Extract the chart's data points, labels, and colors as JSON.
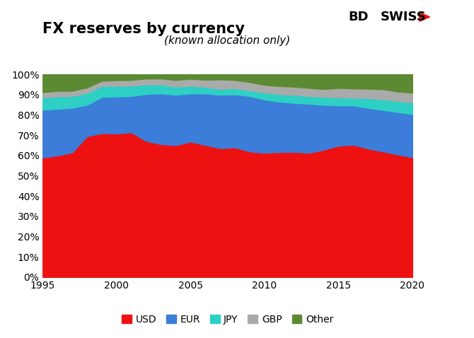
{
  "title": "FX reserves by currency",
  "subtitle": "(known allocation only)",
  "xlim": [
    1995,
    2020
  ],
  "ylim": [
    0,
    1.0
  ],
  "yticks": [
    0.0,
    0.1,
    0.2,
    0.3,
    0.4,
    0.5,
    0.6,
    0.7,
    0.8,
    0.9,
    1.0
  ],
  "ytick_labels": [
    "0%",
    "10%",
    "20%",
    "30%",
    "40%",
    "50%",
    "60%",
    "70%",
    "80%",
    "90%",
    "100%"
  ],
  "xticks": [
    1995,
    2000,
    2005,
    2010,
    2015,
    2020
  ],
  "colors": {
    "USD": "#ee1111",
    "EUR": "#3b7dd8",
    "JPY": "#2ecfc4",
    "GBP": "#aaaaaa",
    "Other": "#5b8a32"
  },
  "background_color": "#ffffff",
  "title_fontsize": 15,
  "subtitle_fontsize": 11,
  "years": [
    1995,
    1996,
    1997,
    1998,
    1999,
    2000,
    2001,
    2002,
    2003,
    2004,
    2005,
    2006,
    2007,
    2008,
    2009,
    2010,
    2011,
    2012,
    2013,
    2014,
    2015,
    2016,
    2017,
    2018,
    2019,
    2020
  ],
  "USD": [
    0.59,
    0.6,
    0.615,
    0.695,
    0.71,
    0.708,
    0.714,
    0.671,
    0.656,
    0.651,
    0.668,
    0.652,
    0.635,
    0.64,
    0.62,
    0.613,
    0.617,
    0.618,
    0.613,
    0.628,
    0.648,
    0.653,
    0.634,
    0.62,
    0.605,
    0.591
  ],
  "EUR": [
    0.235,
    0.23,
    0.22,
    0.155,
    0.178,
    0.183,
    0.179,
    0.232,
    0.25,
    0.248,
    0.238,
    0.254,
    0.264,
    0.261,
    0.273,
    0.263,
    0.248,
    0.241,
    0.242,
    0.221,
    0.199,
    0.194,
    0.201,
    0.204,
    0.209,
    0.213
  ],
  "JPY": [
    0.061,
    0.061,
    0.058,
    0.059,
    0.055,
    0.052,
    0.051,
    0.048,
    0.044,
    0.04,
    0.038,
    0.033,
    0.029,
    0.031,
    0.028,
    0.034,
    0.038,
    0.04,
    0.038,
    0.04,
    0.039,
    0.038,
    0.048,
    0.053,
    0.055,
    0.058
  ],
  "GBP": [
    0.026,
    0.027,
    0.026,
    0.026,
    0.025,
    0.028,
    0.028,
    0.028,
    0.029,
    0.033,
    0.034,
    0.034,
    0.047,
    0.04,
    0.041,
    0.038,
    0.039,
    0.04,
    0.04,
    0.038,
    0.047,
    0.045,
    0.046,
    0.05,
    0.046,
    0.047
  ],
  "Other": [
    0.088,
    0.082,
    0.081,
    0.065,
    0.032,
    0.029,
    0.028,
    0.021,
    0.021,
    0.028,
    0.022,
    0.027,
    0.025,
    0.028,
    0.038,
    0.052,
    0.058,
    0.061,
    0.067,
    0.073,
    0.067,
    0.07,
    0.071,
    0.073,
    0.085,
    0.091
  ]
}
